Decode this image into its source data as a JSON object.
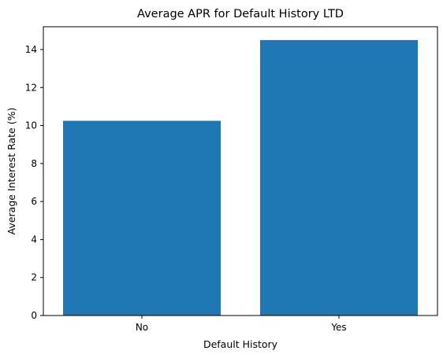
{
  "chart_data": {
    "type": "bar",
    "title": "Average APR for Default History LTD",
    "xlabel": "Default History",
    "ylabel": "Average Interest Rate (%)",
    "categories": [
      "No",
      "Yes"
    ],
    "values": [
      10.25,
      14.5
    ],
    "ylim": [
      0,
      15.2
    ],
    "yticks": [
      0,
      2,
      4,
      6,
      8,
      10,
      12,
      14
    ],
    "bar_color": "#1f77b4",
    "grid": false
  }
}
